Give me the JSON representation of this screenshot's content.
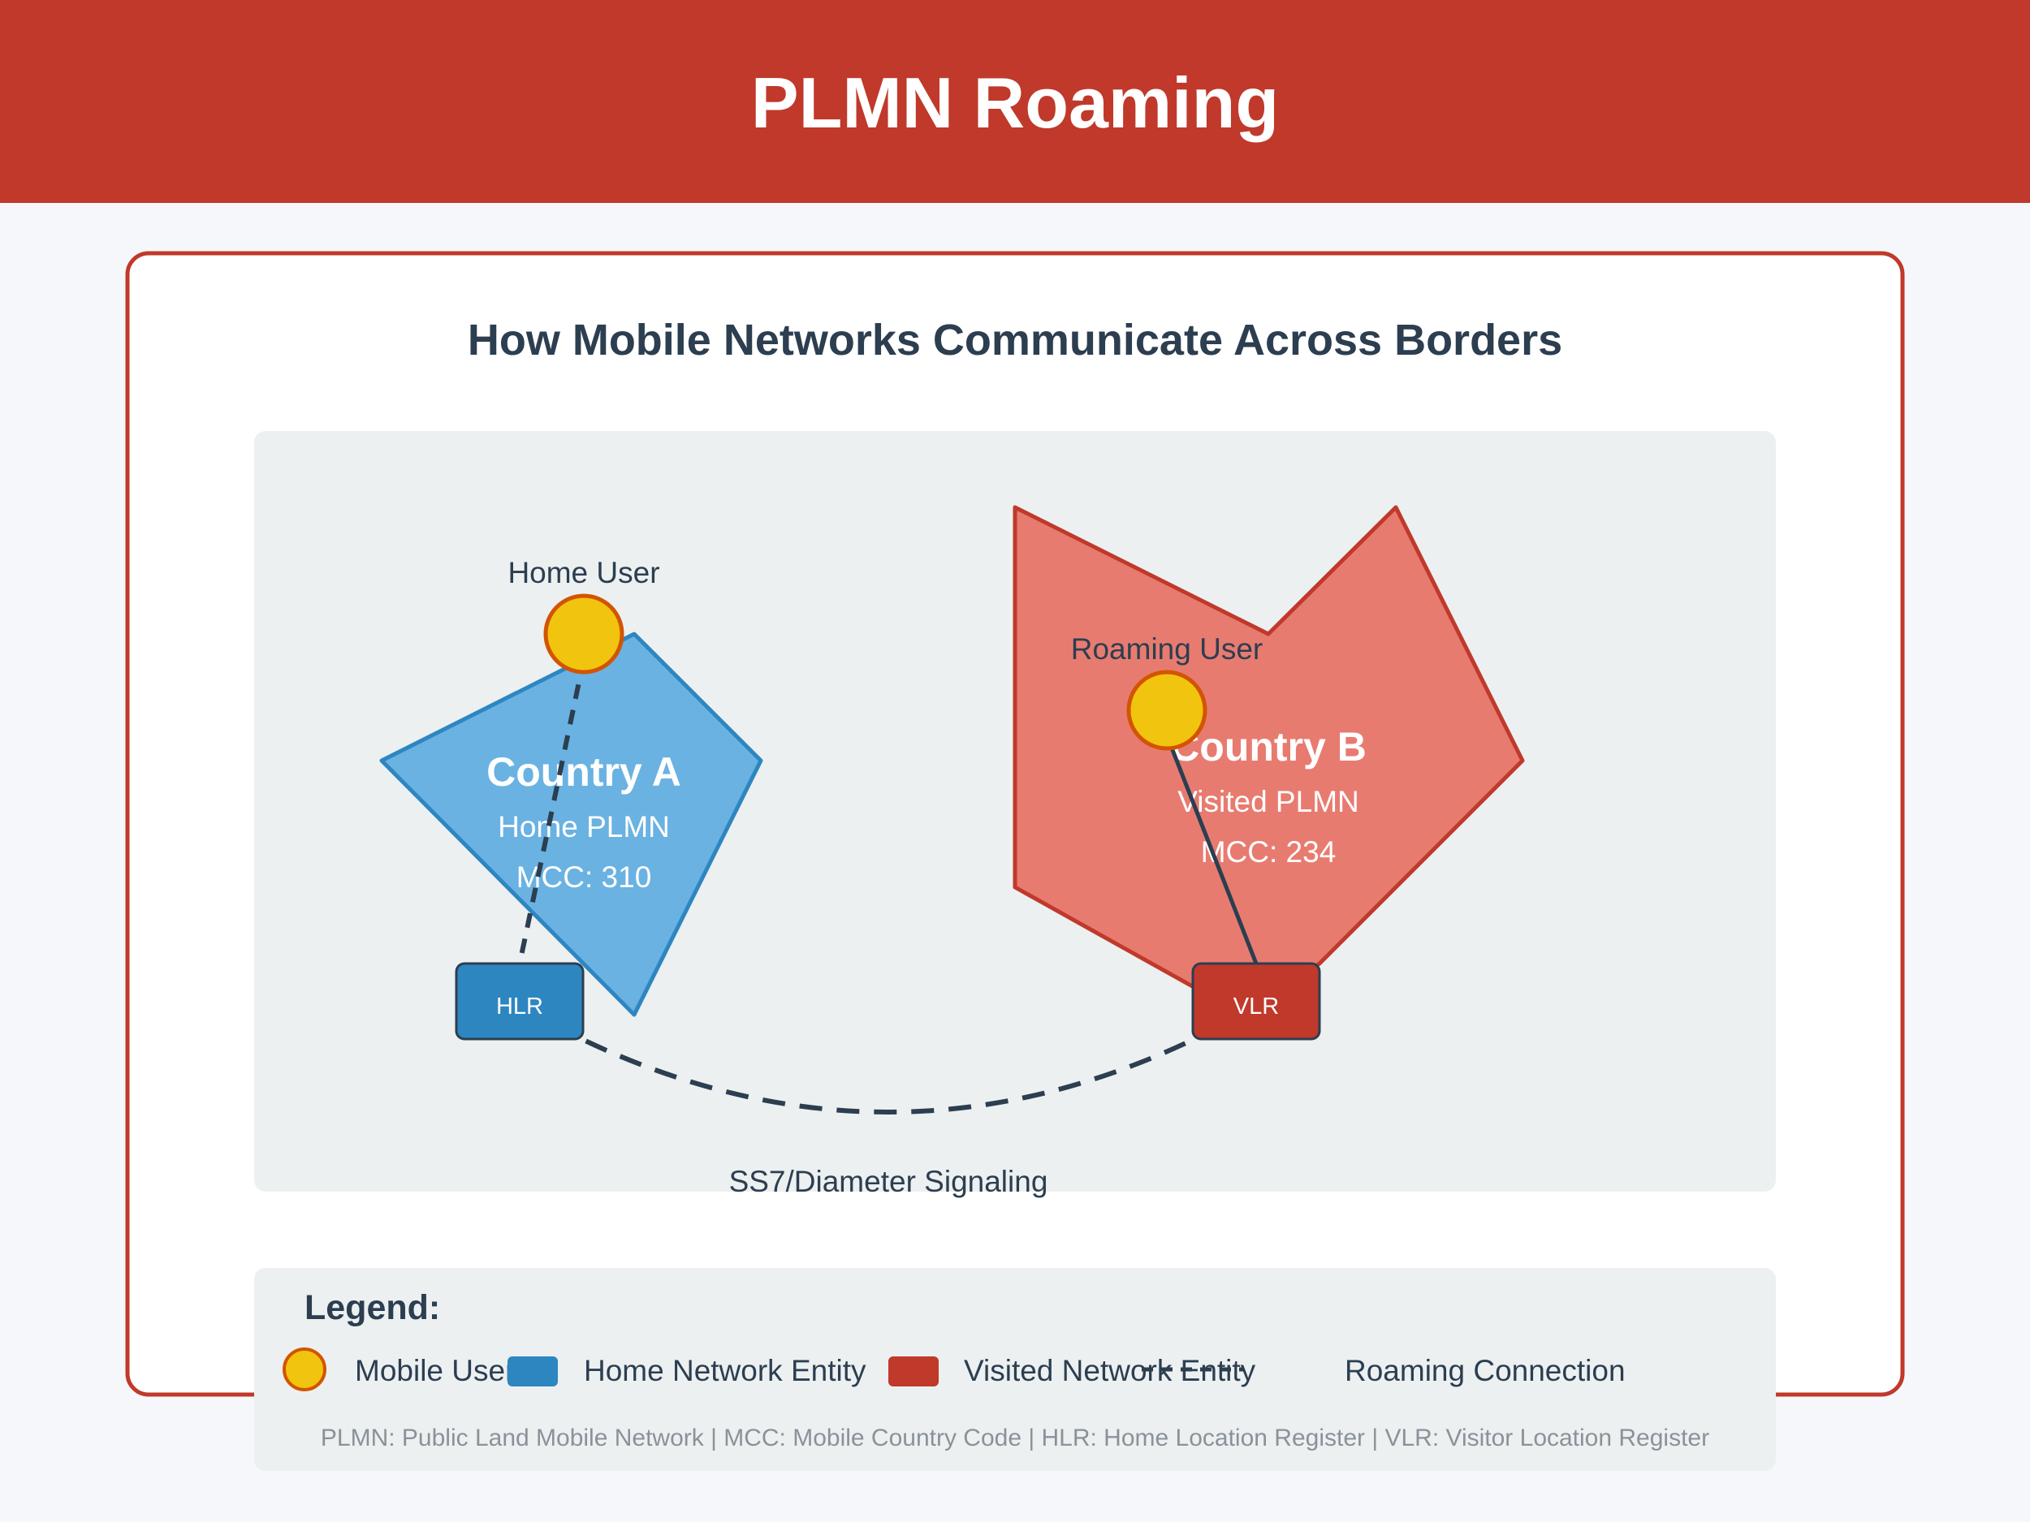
{
  "header": {
    "title": "PLMN Roaming",
    "color": "#c0392b"
  },
  "card": {
    "subtitle": "How Mobile Networks Communicate Across Borders"
  },
  "country_a": {
    "name": "Country A",
    "network": "Home PLMN",
    "mcc": "MCC: 310",
    "color": "#6ab2e2",
    "border_color": "#2e86c1"
  },
  "country_b": {
    "name": "Country B",
    "network": "Visited PLMN",
    "mcc": "MCC: 234",
    "color": "#e87b70",
    "border_color": "#c0392b"
  },
  "home_user": {
    "label": "Home User",
    "icon": "mobile-user-icon",
    "color": "#f1c40f"
  },
  "roaming_user": {
    "label": "Roaming User",
    "icon": "mobile-user-icon",
    "color": "#f1c40f"
  },
  "hlr": {
    "label": "HLR",
    "color": "#2e86c1"
  },
  "vlr": {
    "label": "VLR",
    "color": "#c0392b"
  },
  "signaling": {
    "label": "SS7/Diameter Signaling"
  },
  "legend": {
    "title": "Legend:",
    "items": [
      {
        "label": "Mobile User"
      },
      {
        "label": "Home Network Entity"
      },
      {
        "label": "Visited Network Entity"
      },
      {
        "label": "Roaming Connection"
      }
    ],
    "footnote": "PLMN: Public Land Mobile Network | MCC: Mobile Country Code | HLR: Home Location Register | VLR: Visitor Location Register"
  }
}
